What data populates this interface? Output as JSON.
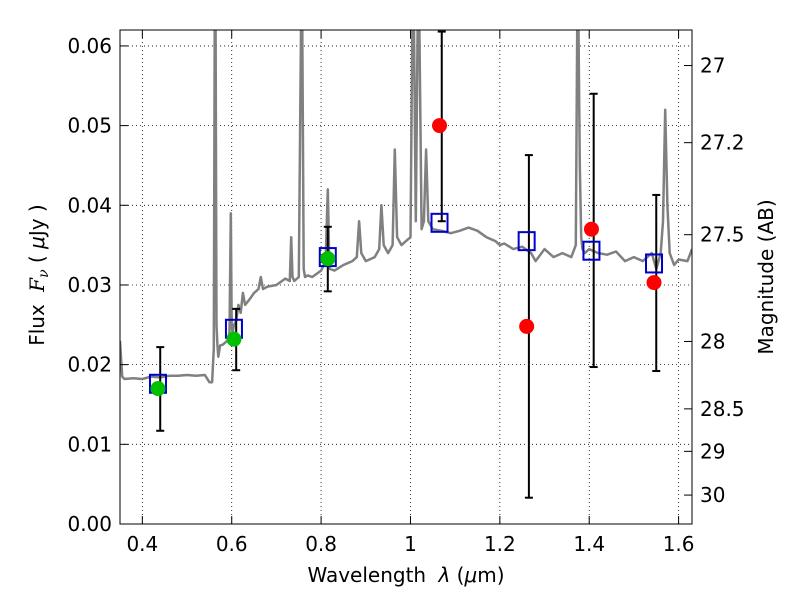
{
  "chart_data": {
    "type": "scatter",
    "title": "",
    "xlabel": "Wavelength  λ (μm)",
    "xlabel_parts": {
      "main": "Wavelength ",
      "lambda": "λ",
      "open": " (",
      "mu": "μ",
      "unit": "m)"
    },
    "ylabel": "Flux  Fν  ( μJy )",
    "ylabel_parts": {
      "main": "Flux ",
      "F": "F",
      "nu": "ν",
      "open": " ( ",
      "mu": "μ",
      "unit": "Jy )"
    },
    "y2label": "Magnitude (AB)",
    "xlim": [
      0.35,
      1.63
    ],
    "ylim": [
      0.0,
      0.062
    ],
    "grid": true,
    "x_ticks": [
      {
        "value": 0.4,
        "label": "0.4"
      },
      {
        "value": 0.6,
        "label": "0.6"
      },
      {
        "value": 0.8,
        "label": "0.8"
      },
      {
        "value": 1.0,
        "label": "1"
      },
      {
        "value": 1.2,
        "label": "1.2"
      },
      {
        "value": 1.4,
        "label": "1.4"
      },
      {
        "value": 1.6,
        "label": "1.6"
      }
    ],
    "y_ticks": [
      {
        "value": 0.0,
        "label": "0.00"
      },
      {
        "value": 0.01,
        "label": "0.01"
      },
      {
        "value": 0.02,
        "label": "0.02"
      },
      {
        "value": 0.03,
        "label": "0.03"
      },
      {
        "value": 0.04,
        "label": "0.04"
      },
      {
        "value": 0.05,
        "label": "0.05"
      },
      {
        "value": 0.06,
        "label": "0.06"
      }
    ],
    "y2_ticks": [
      {
        "flux": 0.05754,
        "label": "27"
      },
      {
        "flux": 0.04786,
        "label": "27.2"
      },
      {
        "flux": 0.03631,
        "label": "27.5"
      },
      {
        "flux": 0.02291,
        "label": "28"
      },
      {
        "flux": 0.01445,
        "label": "28.5"
      },
      {
        "flux": 0.00912,
        "label": "29"
      },
      {
        "flux": 0.00363,
        "label": "30"
      }
    ],
    "series": [
      {
        "name": "model-spectrum",
        "kind": "line",
        "color": "#808080",
        "x": [
          0.35,
          0.355,
          0.36,
          0.38,
          0.4,
          0.42,
          0.44,
          0.46,
          0.48,
          0.5,
          0.52,
          0.54,
          0.55,
          0.556,
          0.56,
          0.562,
          0.564,
          0.566,
          0.568,
          0.57,
          0.574,
          0.58,
          0.59,
          0.595,
          0.598,
          0.6,
          0.602,
          0.605,
          0.61,
          0.615,
          0.62,
          0.625,
          0.63,
          0.64,
          0.65,
          0.66,
          0.665,
          0.67,
          0.68,
          0.7,
          0.72,
          0.73,
          0.733,
          0.736,
          0.74,
          0.75,
          0.755,
          0.758,
          0.761,
          0.764,
          0.77,
          0.78,
          0.8,
          0.81,
          0.815,
          0.818,
          0.82,
          0.83,
          0.85,
          0.87,
          0.88,
          0.885,
          0.89,
          0.9,
          0.92,
          0.93,
          0.935,
          0.94,
          0.95,
          0.96,
          0.965,
          0.97,
          0.98,
          0.99,
          1.0,
          1.004,
          1.008,
          1.012,
          1.016,
          1.02,
          1.025,
          1.03,
          1.035,
          1.04,
          1.045,
          1.05,
          1.07,
          1.09,
          1.11,
          1.13,
          1.15,
          1.17,
          1.19,
          1.2,
          1.21,
          1.23,
          1.25,
          1.27,
          1.28,
          1.3,
          1.32,
          1.34,
          1.36,
          1.37,
          1.373,
          1.376,
          1.379,
          1.382,
          1.385,
          1.39,
          1.4,
          1.42,
          1.44,
          1.46,
          1.48,
          1.5,
          1.52,
          1.54,
          1.55,
          1.56,
          1.565,
          1.57,
          1.575,
          1.58,
          1.59,
          1.6,
          1.62,
          1.63
        ],
        "y": [
          0.023,
          0.0185,
          0.0182,
          0.0183,
          0.0182,
          0.0185,
          0.0184,
          0.0186,
          0.0186,
          0.0187,
          0.0186,
          0.0187,
          0.0178,
          0.0178,
          0.022,
          0.062,
          0.062,
          0.025,
          0.0225,
          0.021,
          0.0224,
          0.0225,
          0.023,
          0.024,
          0.039,
          0.025,
          0.024,
          0.025,
          0.0255,
          0.0275,
          0.0265,
          0.029,
          0.0275,
          0.0282,
          0.029,
          0.0295,
          0.031,
          0.0295,
          0.0298,
          0.03,
          0.0308,
          0.0305,
          0.036,
          0.031,
          0.0305,
          0.031,
          0.062,
          0.062,
          0.032,
          0.031,
          0.0312,
          0.031,
          0.0318,
          0.033,
          0.042,
          0.034,
          0.032,
          0.0318,
          0.0325,
          0.033,
          0.0335,
          0.038,
          0.034,
          0.033,
          0.0335,
          0.0345,
          0.04,
          0.035,
          0.034,
          0.035,
          0.047,
          0.036,
          0.035,
          0.0355,
          0.036,
          0.062,
          0.062,
          0.038,
          0.062,
          0.062,
          0.037,
          0.038,
          0.047,
          0.038,
          0.0375,
          0.037,
          0.0368,
          0.0365,
          0.0368,
          0.0372,
          0.0368,
          0.036,
          0.0355,
          0.035,
          0.0352,
          0.0345,
          0.0348,
          0.034,
          0.033,
          0.0345,
          0.0335,
          0.034,
          0.0335,
          0.035,
          0.062,
          0.062,
          0.045,
          0.036,
          0.0345,
          0.034,
          0.0345,
          0.034,
          0.0338,
          0.0342,
          0.033,
          0.0335,
          0.033,
          0.034,
          0.032,
          0.034,
          0.038,
          0.052,
          0.04,
          0.034,
          0.0325,
          0.0332,
          0.033,
          0.0345
        ]
      },
      {
        "name": "model-flux-squares",
        "kind": "square",
        "color": "#0000cc",
        "x": [
          0.435,
          0.605,
          0.815,
          1.065,
          1.26,
          1.405,
          1.545
        ],
        "y": [
          0.0176,
          0.0245,
          0.0335,
          0.0378,
          0.0355,
          0.0343,
          0.0327
        ]
      },
      {
        "name": "detections",
        "kind": "circle",
        "color": "#00c000",
        "x": [
          0.435,
          0.605,
          0.815
        ],
        "y": [
          0.017,
          0.0232,
          0.0333
        ]
      },
      {
        "name": "upper-limits",
        "kind": "circle",
        "color": "#ff0000",
        "x": [
          1.065,
          1.26,
          1.405,
          1.545
        ],
        "y": [
          0.05,
          0.0248,
          0.037,
          0.0303
        ]
      }
    ],
    "error_bars": [
      {
        "x": 0.44,
        "low": 0.0117,
        "high": 0.0222
      },
      {
        "x": 0.61,
        "low": 0.0193,
        "high": 0.027
      },
      {
        "x": 0.815,
        "low": 0.0292,
        "high": 0.0373
      },
      {
        "x": 1.07,
        "low": 0.038,
        "high": 0.0618
      },
      {
        "x": 1.265,
        "low": 0.0033,
        "high": 0.0463
      },
      {
        "x": 1.41,
        "low": 0.0197,
        "high": 0.054
      },
      {
        "x": 1.55,
        "low": 0.0192,
        "high": 0.0413
      }
    ]
  }
}
